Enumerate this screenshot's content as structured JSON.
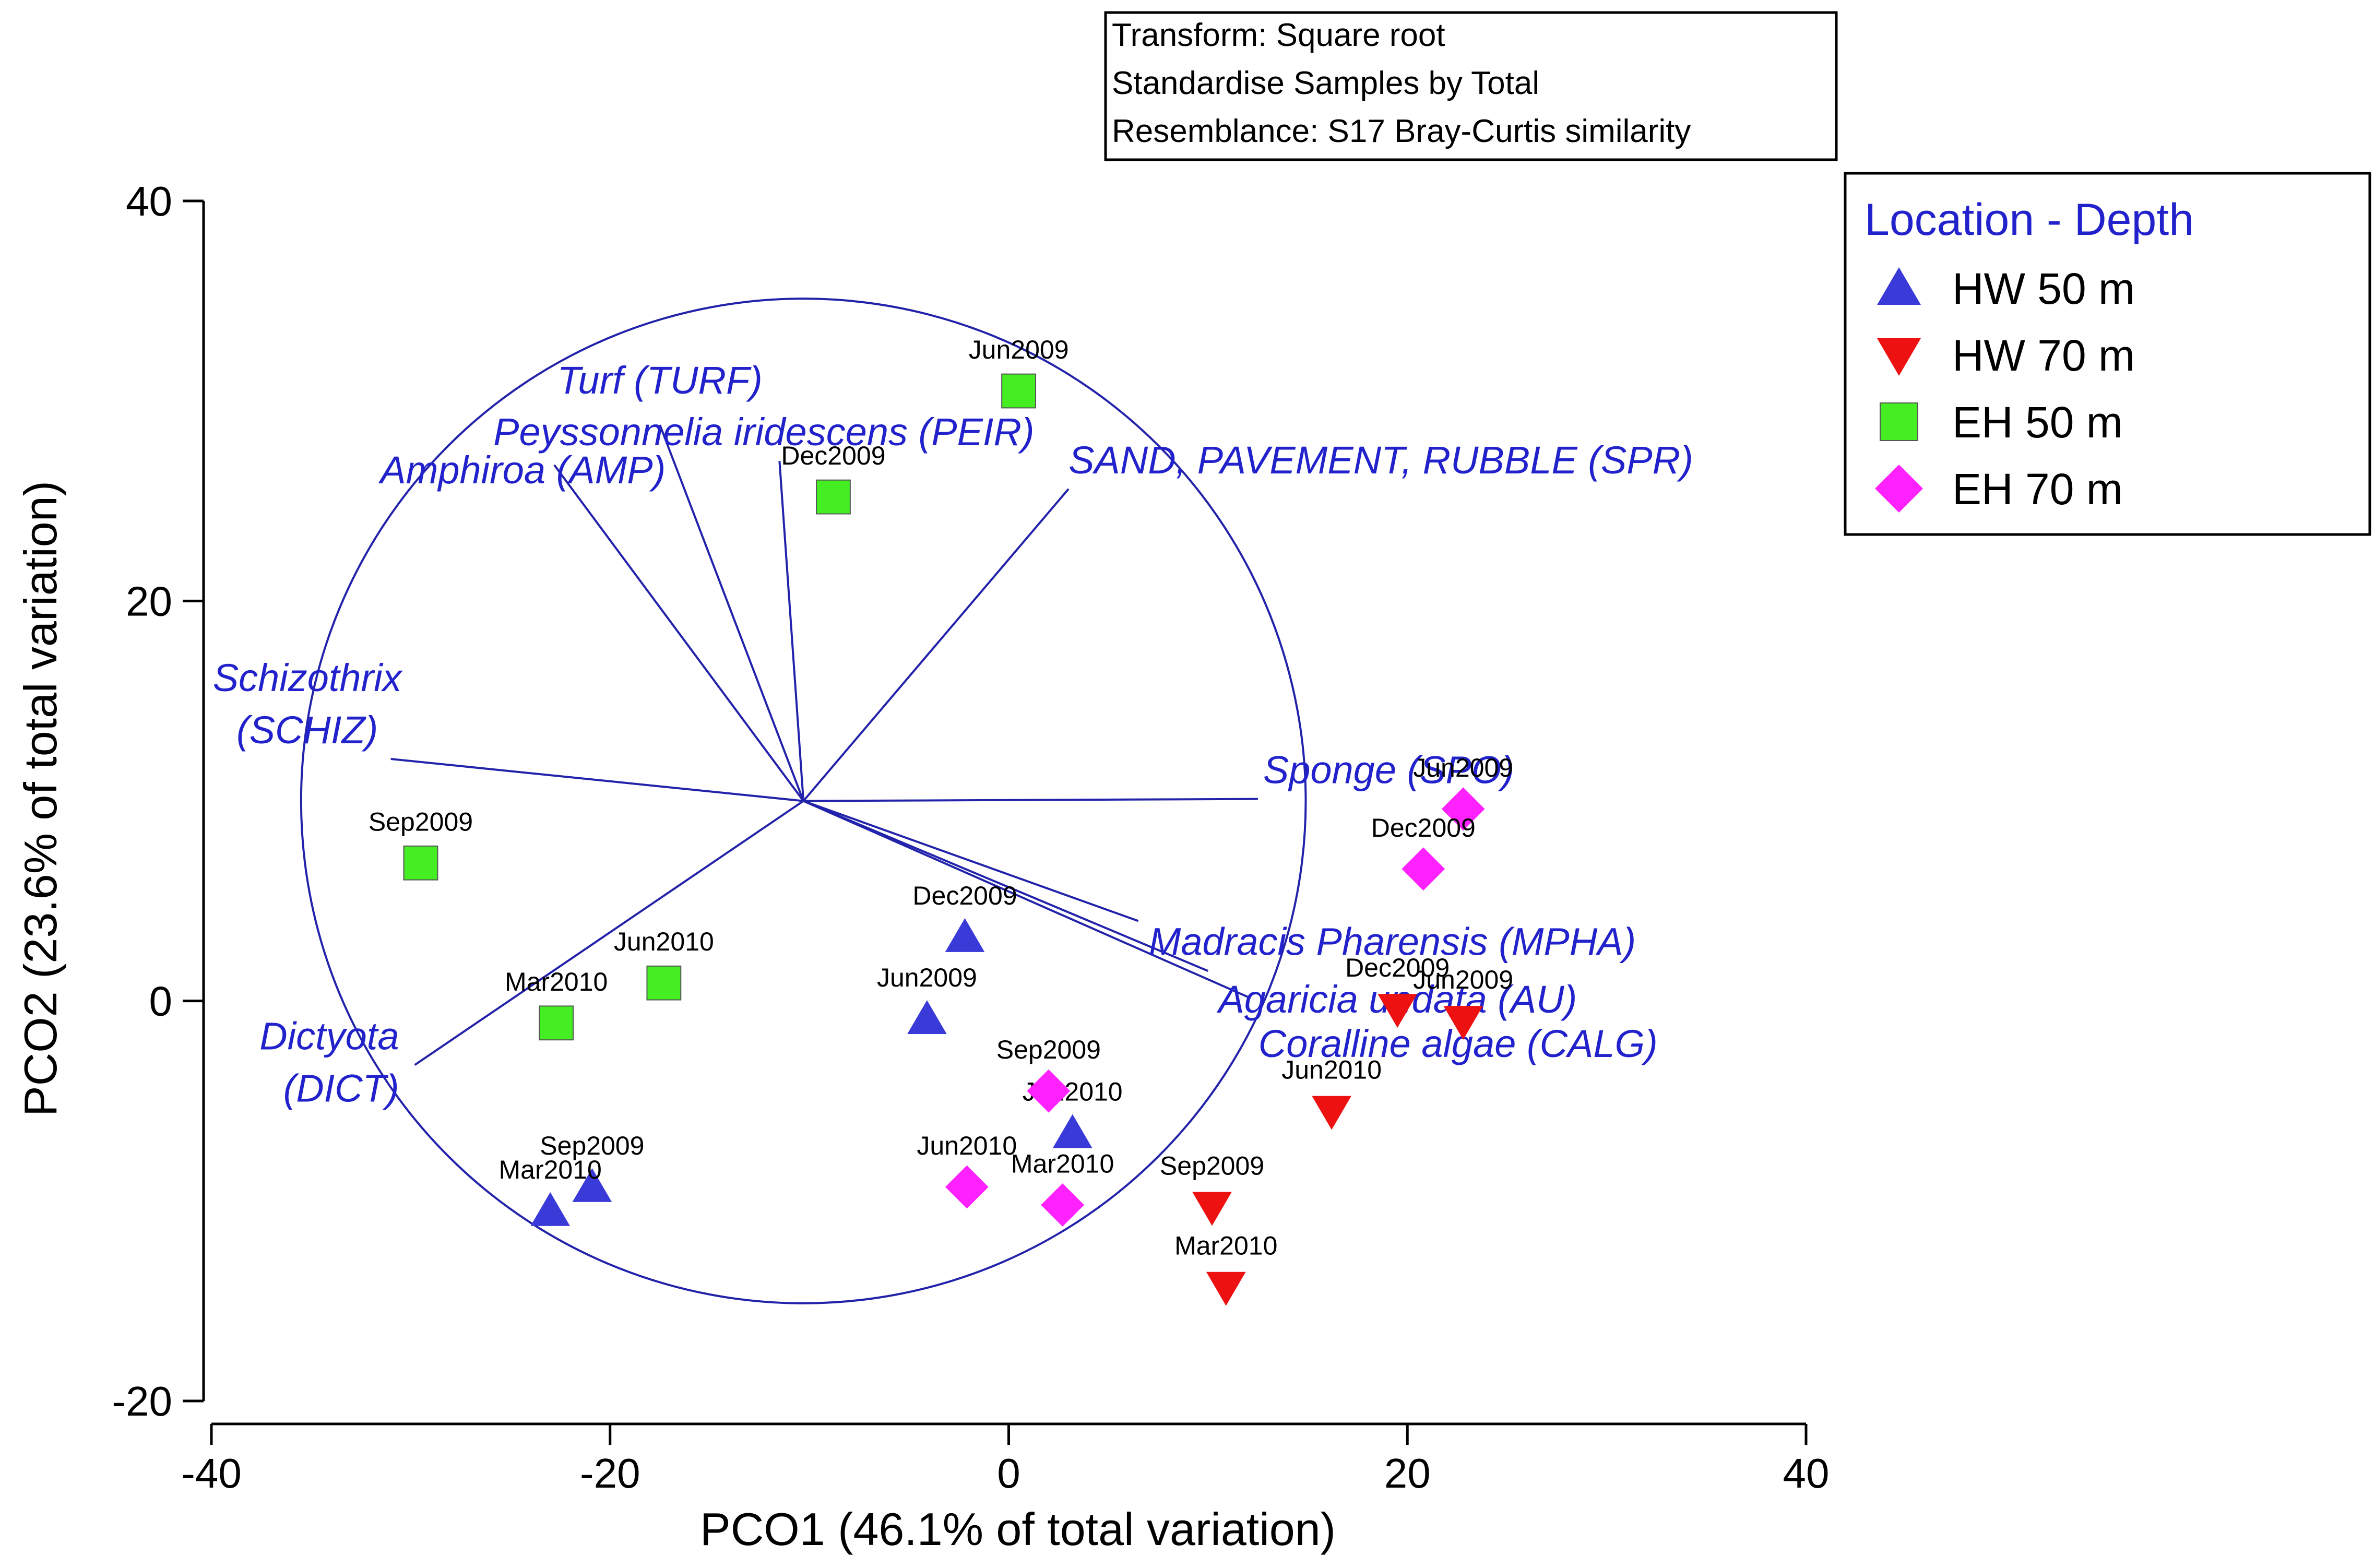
{
  "chart_data": {
    "type": "scatter",
    "xlabel": "PCO1 (46.1% of total variation)",
    "ylabel": "PCO2  (23.6% of total variation)",
    "xlim": [
      -40,
      40
    ],
    "ylim": [
      -20,
      40
    ],
    "xticks": [
      "-40",
      "-20",
      "0",
      "20",
      "40"
    ],
    "yticks": [
      "-20",
      "0",
      "20",
      "40"
    ],
    "xtick_values": [
      -40,
      -20,
      0,
      20,
      40
    ],
    "ytick_values": [
      -20,
      0,
      20,
      40
    ],
    "grid": false,
    "notes": [
      "Transform: Square root",
      "Standardise Samples by Total",
      "Resemblance: S17 Bray-Curtis similarity"
    ],
    "legend": {
      "title": "Location - Depth",
      "position": "top-right",
      "entries": [
        {
          "name": "HW 50 m",
          "marker": "triangle-up",
          "color": "#3a3ad8"
        },
        {
          "name": "HW 70 m",
          "marker": "triangle-down",
          "color": "#ee1111"
        },
        {
          "name": "EH 50 m",
          "marker": "square",
          "color": "#44ee22"
        },
        {
          "name": "EH 70 m",
          "marker": "diamond",
          "color": "#ff22ff"
        }
      ]
    },
    "series": [
      {
        "name": "HW 50 m",
        "points": [
          {
            "x": -2.2,
            "y": 3.2,
            "label": "Dec2009"
          },
          {
            "x": -4.1,
            "y": -0.9,
            "label": "Jun2009"
          },
          {
            "x": 3.2,
            "y": -6.6,
            "label": "Jun2010"
          },
          {
            "x": -20.9,
            "y": -9.3,
            "label": "Sep2009"
          },
          {
            "x": -23.0,
            "y": -10.5,
            "label": "Mar2010"
          }
        ]
      },
      {
        "name": "HW 70 m",
        "points": [
          {
            "x": 19.5,
            "y": -0.4,
            "label": "Dec2009"
          },
          {
            "x": 22.8,
            "y": -1.0,
            "label": "Jun2009"
          },
          {
            "x": 16.2,
            "y": -5.5,
            "label": "Jun2010"
          },
          {
            "x": 10.2,
            "y": -10.3,
            "label": "Sep2009"
          },
          {
            "x": 10.9,
            "y": -14.3,
            "label": "Mar2010"
          }
        ]
      },
      {
        "name": "EH 50 m",
        "points": [
          {
            "x": 0.5,
            "y": 30.5,
            "label": "Jun2009"
          },
          {
            "x": -8.8,
            "y": 25.2,
            "label": "Dec2009"
          },
          {
            "x": -29.5,
            "y": 6.9,
            "label": "Sep2009"
          },
          {
            "x": -17.3,
            "y": 0.9,
            "label": "Jun2010"
          },
          {
            "x": -22.7,
            "y": -1.1,
            "label": "Mar2010"
          }
        ]
      },
      {
        "name": "EH 70 m",
        "points": [
          {
            "x": 22.8,
            "y": 9.6,
            "label": "Jun2009"
          },
          {
            "x": 20.8,
            "y": 6.6,
            "label": "Dec2009"
          },
          {
            "x": 2.0,
            "y": -4.5,
            "label": "Sep2009"
          },
          {
            "x": -2.1,
            "y": -9.3,
            "label": "Jun2010"
          },
          {
            "x": 2.7,
            "y": -10.2,
            "label": "Mar2010"
          }
        ]
      }
    ],
    "vector_origin": {
      "x": -10.3,
      "y": 10.0
    },
    "vector_circle_radius": 25.2,
    "vectors": [
      {
        "lines": [
          "Turf (TURF)"
        ],
        "x": -17.5,
        "y": 28.8
      },
      {
        "lines": [
          "Peyssonnelia iridescens (PEIR)"
        ],
        "x": -11.5,
        "y": 27.0
      },
      {
        "lines": [
          "Amphiroa (AMP)"
        ],
        "x": -22.8,
        "y": 26.8
      },
      {
        "lines": [
          "SAND, PAVEMENT, RUBBLE (SPR)"
        ],
        "x": 3.0,
        "y": 25.6
      },
      {
        "lines": [
          "Schizothrix",
          "(SCHIZ)"
        ],
        "x": -31.0,
        "y": 12.1
      },
      {
        "lines": [
          "Sponge (SPO)"
        ],
        "x": 12.5,
        "y": 10.1
      },
      {
        "lines": [
          "Madracis Pharensis (MPHA)"
        ],
        "x": 6.5,
        "y": 4.0
      },
      {
        "lines": [
          "Agaricia undata (AU)"
        ],
        "x": 10.0,
        "y": 1.5
      },
      {
        "lines": [
          "Coralline algae (CALG)"
        ],
        "x": 12.0,
        "y": 0.2
      },
      {
        "lines": [
          "Dictyota",
          "(DICT)"
        ],
        "x": -29.8,
        "y": -3.2
      }
    ]
  }
}
